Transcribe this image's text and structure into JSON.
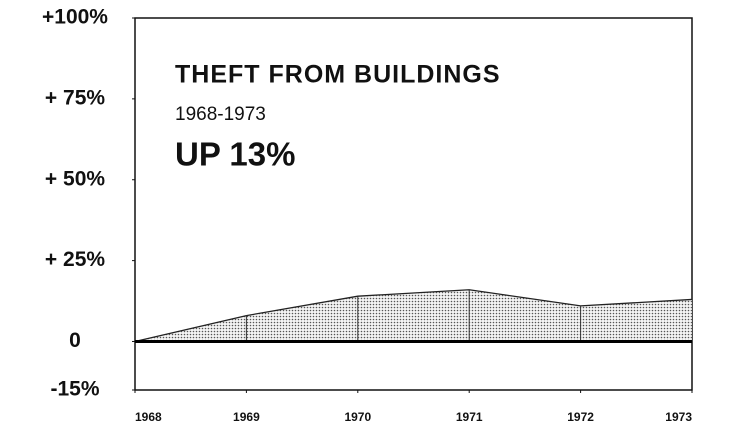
{
  "chart_data": {
    "type": "area",
    "title": "THEFT FROM BUILDINGS",
    "subtitle": "1968-1973",
    "annotation": "UP 13%",
    "x": [
      1968,
      1969,
      1970,
      1971,
      1972,
      1973
    ],
    "values": [
      0,
      8,
      14,
      16,
      11,
      13
    ],
    "color": "#c8c8c8",
    "xlim": [
      1968,
      1973
    ],
    "xticks": [
      1968,
      1969,
      1970,
      1971,
      1972,
      1973
    ],
    "ylim": [
      -15,
      100
    ],
    "yticks": [
      {
        "value": 100,
        "label": "+100%"
      },
      {
        "value": 75,
        "label": "+ 75%"
      },
      {
        "value": 50,
        "label": "+ 50%"
      },
      {
        "value": 25,
        "label": "+ 25%"
      },
      0,
      {
        "value": -15,
        "label": "-15%"
      }
    ]
  }
}
